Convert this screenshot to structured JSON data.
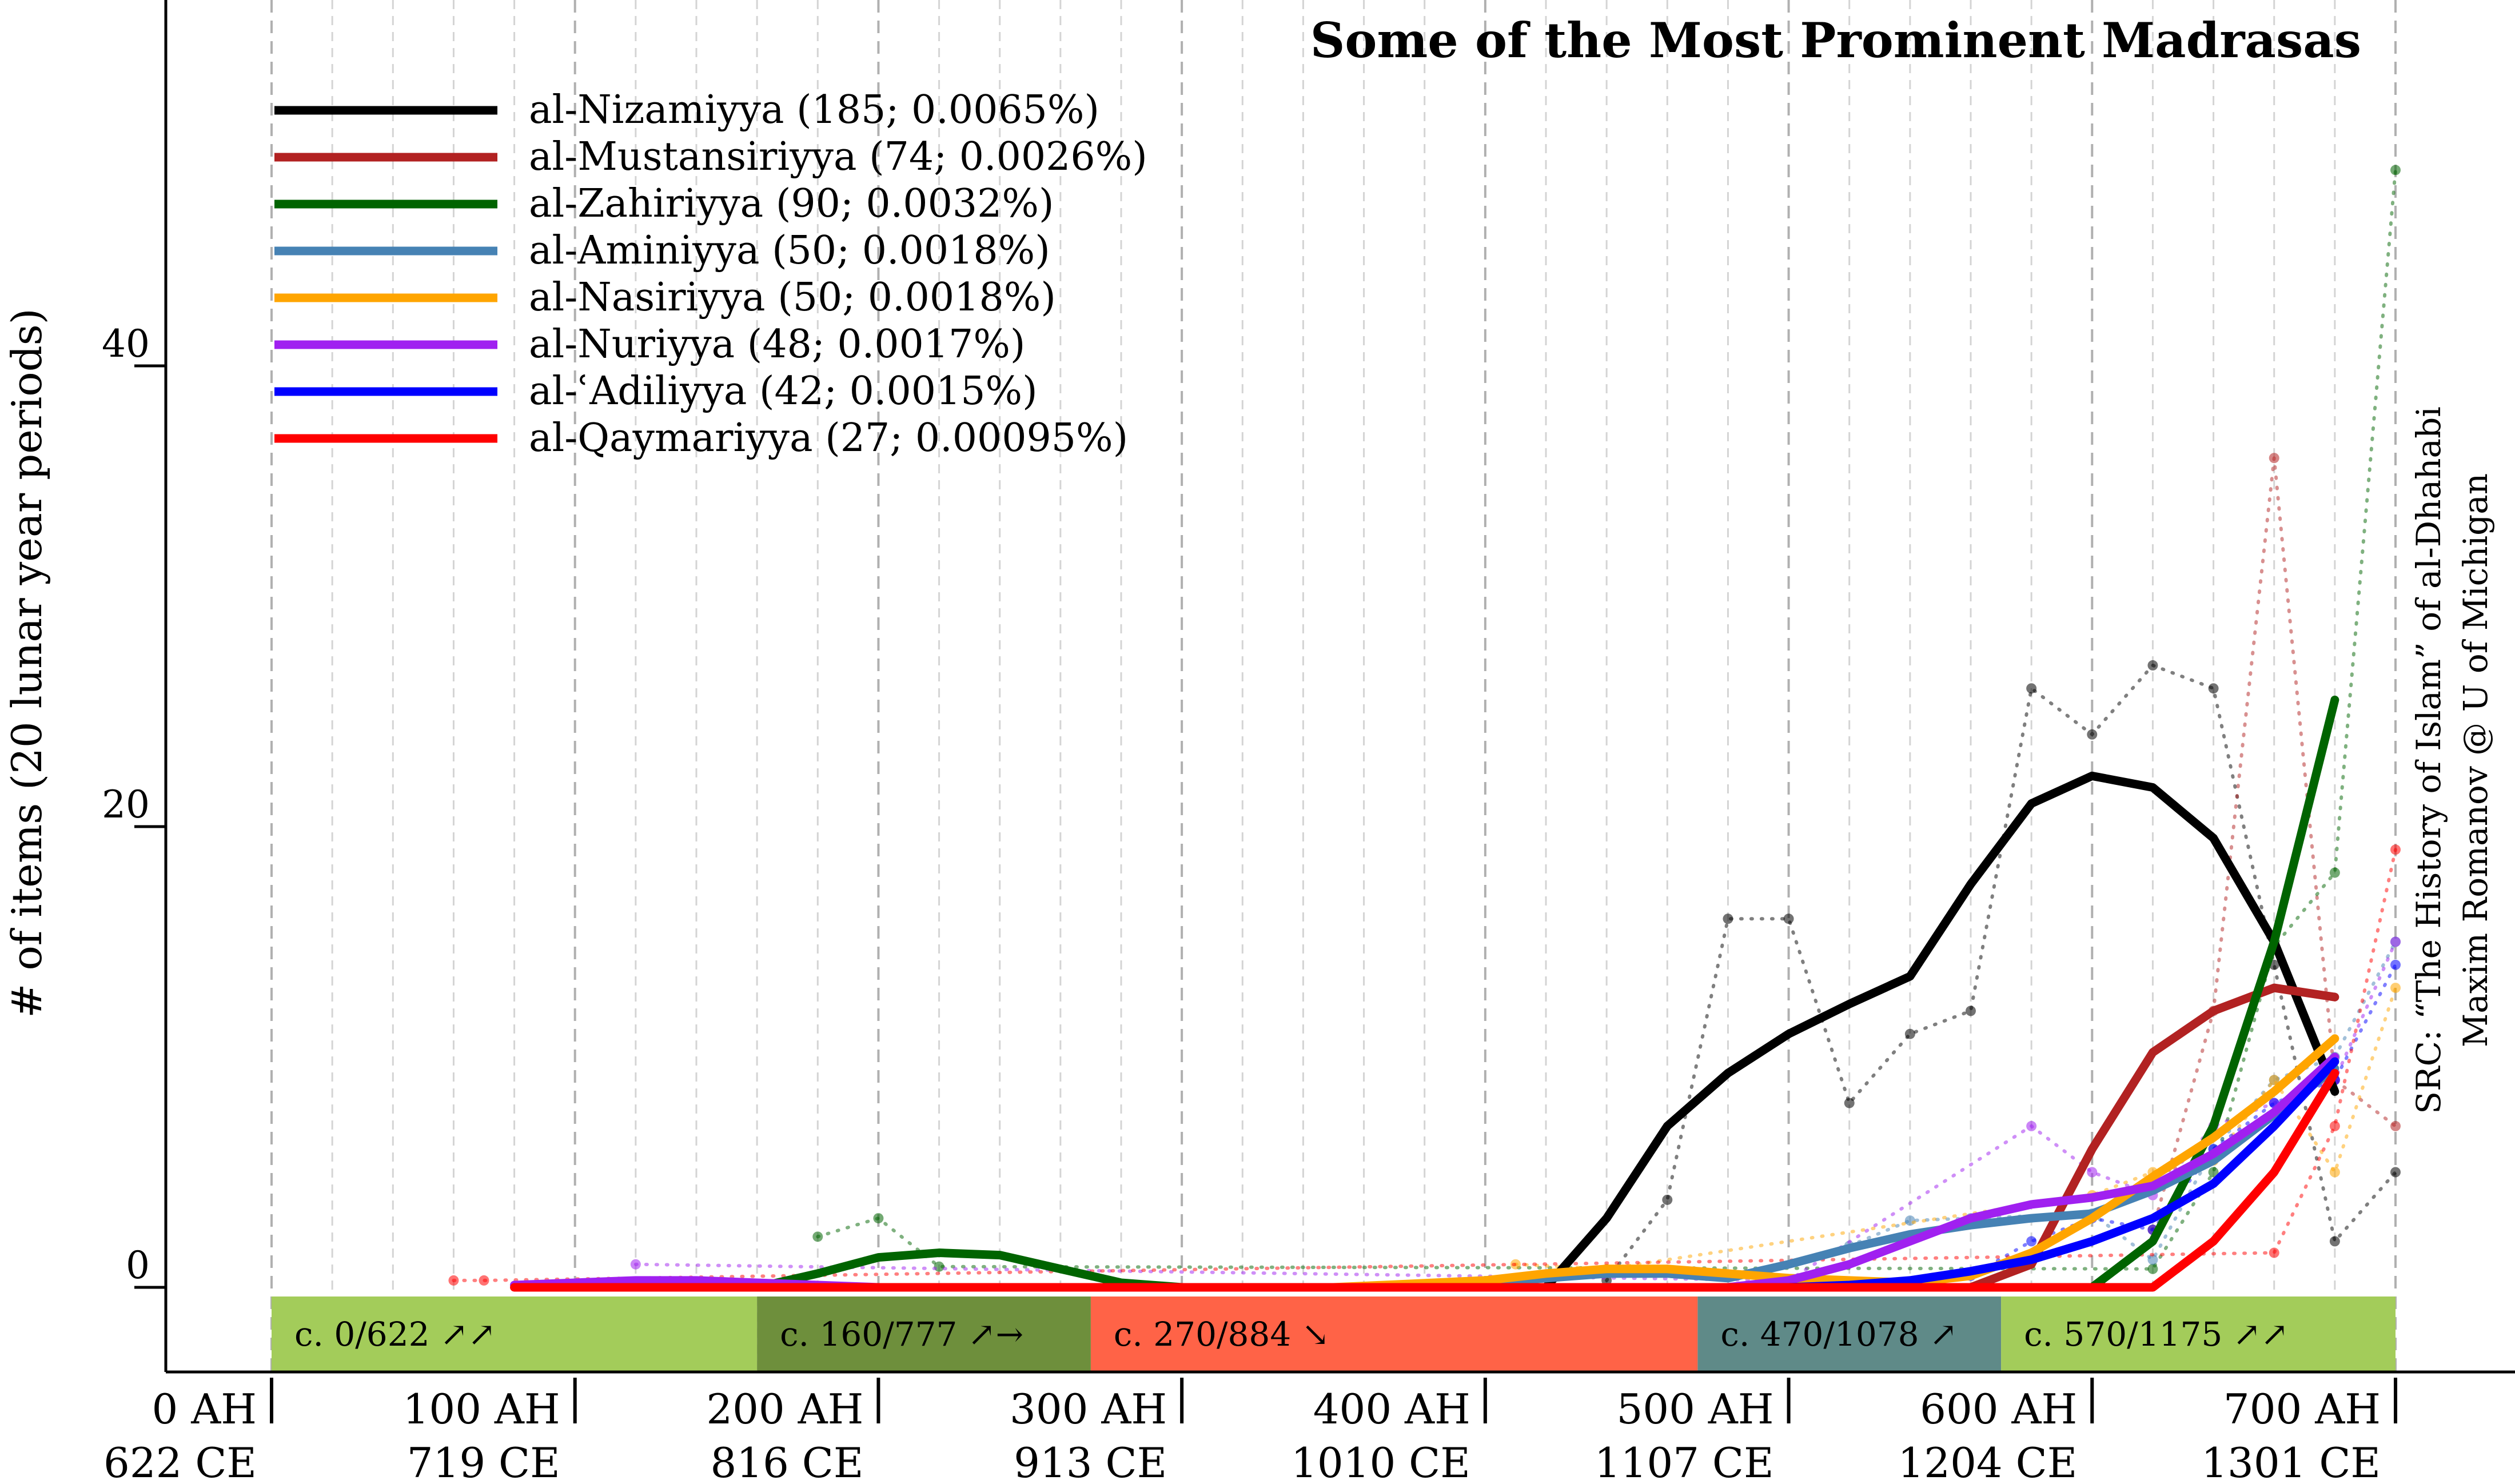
{
  "chart_data": {
    "type": "line",
    "title": "Some of the Most Prominent Madrasas",
    "ylabel": "# of items (20 lunar year periods)",
    "xlabel": "",
    "ylim": [
      -4,
      55
    ],
    "yticks": [
      0,
      20,
      40
    ],
    "xlim": [
      -20,
      720
    ],
    "x_ticks": [
      {
        "ah": 0,
        "label_ah": "0 AH",
        "label_ce": "622 CE"
      },
      {
        "ah": 100,
        "label_ah": "100 AH",
        "label_ce": "719 CE"
      },
      {
        "ah": 200,
        "label_ah": "200 AH",
        "label_ce": "816 CE"
      },
      {
        "ah": 300,
        "label_ah": "300 AH",
        "label_ce": "913 CE"
      },
      {
        "ah": 400,
        "label_ah": "400 AH",
        "label_ce": "1010 CE"
      },
      {
        "ah": 500,
        "label_ah": "500 AH",
        "label_ce": "1107 CE"
      },
      {
        "ah": 600,
        "label_ah": "600 AH",
        "label_ce": "1204 CE"
      },
      {
        "ah": 700,
        "label_ah": "700 AH",
        "label_ce": "1301 CE"
      }
    ],
    "grid_x_step": 20,
    "legend_position": "top-left",
    "source_lines": [
      "SRC: “The History of Islam” of al-Dhahabi",
      "Maxim Romanov @ U of Michigan"
    ],
    "eras": [
      {
        "start": 0,
        "end": 160,
        "label": "c. 0/622 ↗↗",
        "color": "#a3cc5a"
      },
      {
        "start": 160,
        "end": 270,
        "label": "c. 160/777 ↗→",
        "color": "#6e8f3c"
      },
      {
        "start": 270,
        "end": 470,
        "label": "c. 270/884 ↘",
        "color": "#ff6347"
      },
      {
        "start": 470,
        "end": 570,
        "label": "c. 470/1078 ↗",
        "color": "#5f8a88"
      },
      {
        "start": 570,
        "end": 700,
        "label": "c. 570/1175 ↗↗",
        "color": "#a3cc5a"
      }
    ],
    "series": [
      {
        "name": "al-Nizamiyya (185; 0.0065%)",
        "color": "#000000",
        "smooth": [
          [
            420,
            0
          ],
          [
            440,
            3
          ],
          [
            460,
            7
          ],
          [
            480,
            9.3
          ],
          [
            500,
            11
          ],
          [
            520,
            12.3
          ],
          [
            540,
            13.5
          ],
          [
            560,
            17.5
          ],
          [
            580,
            21
          ],
          [
            600,
            22.2
          ],
          [
            620,
            21.7
          ],
          [
            640,
            19.5
          ],
          [
            660,
            15
          ],
          [
            680,
            8.5
          ]
        ],
        "raw": [
          [
            440,
            0.3
          ],
          [
            460,
            3.8
          ],
          [
            480,
            16
          ],
          [
            500,
            16
          ],
          [
            520,
            8
          ],
          [
            540,
            11
          ],
          [
            560,
            12
          ],
          [
            580,
            26
          ],
          [
            600,
            24
          ],
          [
            620,
            27
          ],
          [
            640,
            26
          ],
          [
            660,
            14
          ],
          [
            680,
            2
          ],
          [
            700,
            5
          ]
        ]
      },
      {
        "name": "al-Mustansiriyya (74; 0.0026%)",
        "color": "#b22222",
        "smooth": [
          [
            560,
            0
          ],
          [
            580,
            1
          ],
          [
            600,
            6
          ],
          [
            620,
            10.2
          ],
          [
            640,
            12
          ],
          [
            660,
            13
          ],
          [
            680,
            12.6
          ]
        ],
        "raw": [
          [
            620,
            2.5
          ],
          [
            640,
            12
          ],
          [
            660,
            36
          ],
          [
            680,
            9
          ],
          [
            700,
            7
          ]
        ]
      },
      {
        "name": "al-Zahiriyya (90; 0.0032%)",
        "color": "#006400",
        "smooth": [
          [
            120,
            0
          ],
          [
            140,
            0
          ],
          [
            160,
            0
          ],
          [
            180,
            0.6
          ],
          [
            200,
            1.3
          ],
          [
            220,
            1.5
          ],
          [
            240,
            1.4
          ],
          [
            260,
            0.8
          ],
          [
            280,
            0.2
          ],
          [
            300,
            0
          ],
          [
            600,
            0
          ],
          [
            620,
            2
          ],
          [
            640,
            7
          ],
          [
            660,
            15
          ],
          [
            680,
            25.5
          ]
        ],
        "raw": [
          [
            180,
            2.2
          ],
          [
            200,
            3
          ],
          [
            220,
            0.9
          ],
          [
            620,
            0.8
          ],
          [
            640,
            5
          ],
          [
            660,
            14.8
          ],
          [
            680,
            18
          ],
          [
            700,
            48.5
          ]
        ]
      },
      {
        "name": "al-Aminiyya (50; 0.0018%)",
        "color": "#4682b4",
        "smooth": [
          [
            380,
            0
          ],
          [
            400,
            0.2
          ],
          [
            420,
            0.4
          ],
          [
            440,
            0.6
          ],
          [
            460,
            0.6
          ],
          [
            480,
            0.4
          ],
          [
            500,
            1
          ],
          [
            520,
            1.7
          ],
          [
            540,
            2.3
          ],
          [
            560,
            2.7
          ],
          [
            580,
            3
          ],
          [
            600,
            3.2
          ],
          [
            620,
            4.2
          ],
          [
            640,
            5.5
          ],
          [
            660,
            7.5
          ],
          [
            680,
            9.5
          ]
        ],
        "raw": [
          [
            520,
            1.8
          ],
          [
            540,
            2.9
          ],
          [
            560,
            3
          ],
          [
            600,
            3.2
          ],
          [
            620,
            1.2
          ],
          [
            640,
            6
          ],
          [
            660,
            9
          ],
          [
            680,
            10
          ],
          [
            700,
            15
          ]
        ]
      },
      {
        "name": "al-Nasiriyya (50; 0.0018%)",
        "color": "#ffa500",
        "smooth": [
          [
            350,
            0
          ],
          [
            400,
            0.3
          ],
          [
            420,
            0.6
          ],
          [
            440,
            0.8
          ],
          [
            460,
            0.8
          ],
          [
            480,
            0.6
          ],
          [
            500,
            0.4
          ],
          [
            520,
            0.3
          ],
          [
            540,
            0.2
          ],
          [
            560,
            0.5
          ],
          [
            580,
            1.5
          ],
          [
            600,
            3
          ],
          [
            620,
            4.8
          ],
          [
            640,
            6.5
          ],
          [
            660,
            8.5
          ],
          [
            680,
            10.8
          ]
        ],
        "raw": [
          [
            410,
            1
          ],
          [
            440,
            0.8
          ],
          [
            600,
            4
          ],
          [
            620,
            5
          ],
          [
            640,
            5.5
          ],
          [
            660,
            9
          ],
          [
            680,
            5
          ],
          [
            700,
            13
          ]
        ]
      },
      {
        "name": "al-Nuriyya (48; 0.0017%)",
        "color": "#a020f0",
        "smooth": [
          [
            80,
            0.1
          ],
          [
            100,
            0.2
          ],
          [
            120,
            0.3
          ],
          [
            140,
            0.3
          ],
          [
            160,
            0.2
          ],
          [
            180,
            0.1
          ],
          [
            200,
            0
          ],
          [
            480,
            0
          ],
          [
            500,
            0.3
          ],
          [
            520,
            1
          ],
          [
            540,
            2
          ],
          [
            560,
            3
          ],
          [
            580,
            3.6
          ],
          [
            600,
            3.9
          ],
          [
            620,
            4.4
          ],
          [
            640,
            5.8
          ],
          [
            660,
            7.6
          ],
          [
            680,
            10
          ]
        ],
        "raw": [
          [
            120,
            1
          ],
          [
            500,
            0.3
          ],
          [
            580,
            7
          ],
          [
            600,
            5
          ],
          [
            620,
            4
          ],
          [
            640,
            7
          ],
          [
            660,
            8
          ],
          [
            680,
            9
          ],
          [
            700,
            15
          ]
        ]
      },
      {
        "name": "al-ʿAdiliyya (42; 0.0015%)",
        "color": "#0000ff",
        "smooth": [
          [
            480,
            0
          ],
          [
            500,
            0
          ],
          [
            520,
            0.1
          ],
          [
            540,
            0.3
          ],
          [
            560,
            0.7
          ],
          [
            580,
            1.2
          ],
          [
            600,
            2
          ],
          [
            620,
            3
          ],
          [
            640,
            4.5
          ],
          [
            660,
            7
          ],
          [
            680,
            9.8
          ]
        ],
        "raw": [
          [
            560,
            0.5
          ],
          [
            580,
            2
          ],
          [
            600,
            3
          ],
          [
            620,
            2.5
          ],
          [
            640,
            6
          ],
          [
            660,
            8
          ],
          [
            680,
            9
          ],
          [
            700,
            14
          ]
        ]
      },
      {
        "name": "al-Qaymariyya (27; 0.00095%)",
        "color": "#ff0000",
        "smooth": [
          [
            80,
            0
          ],
          [
            200,
            0
          ],
          [
            300,
            0
          ],
          [
            400,
            0
          ],
          [
            500,
            0
          ],
          [
            600,
            0
          ],
          [
            620,
            0
          ],
          [
            640,
            2
          ],
          [
            660,
            5
          ],
          [
            680,
            9.3
          ]
        ],
        "raw": [
          [
            60,
            0.3
          ],
          [
            70,
            0.3
          ],
          [
            660,
            1.5
          ],
          [
            680,
            7
          ],
          [
            700,
            19
          ]
        ]
      }
    ]
  }
}
